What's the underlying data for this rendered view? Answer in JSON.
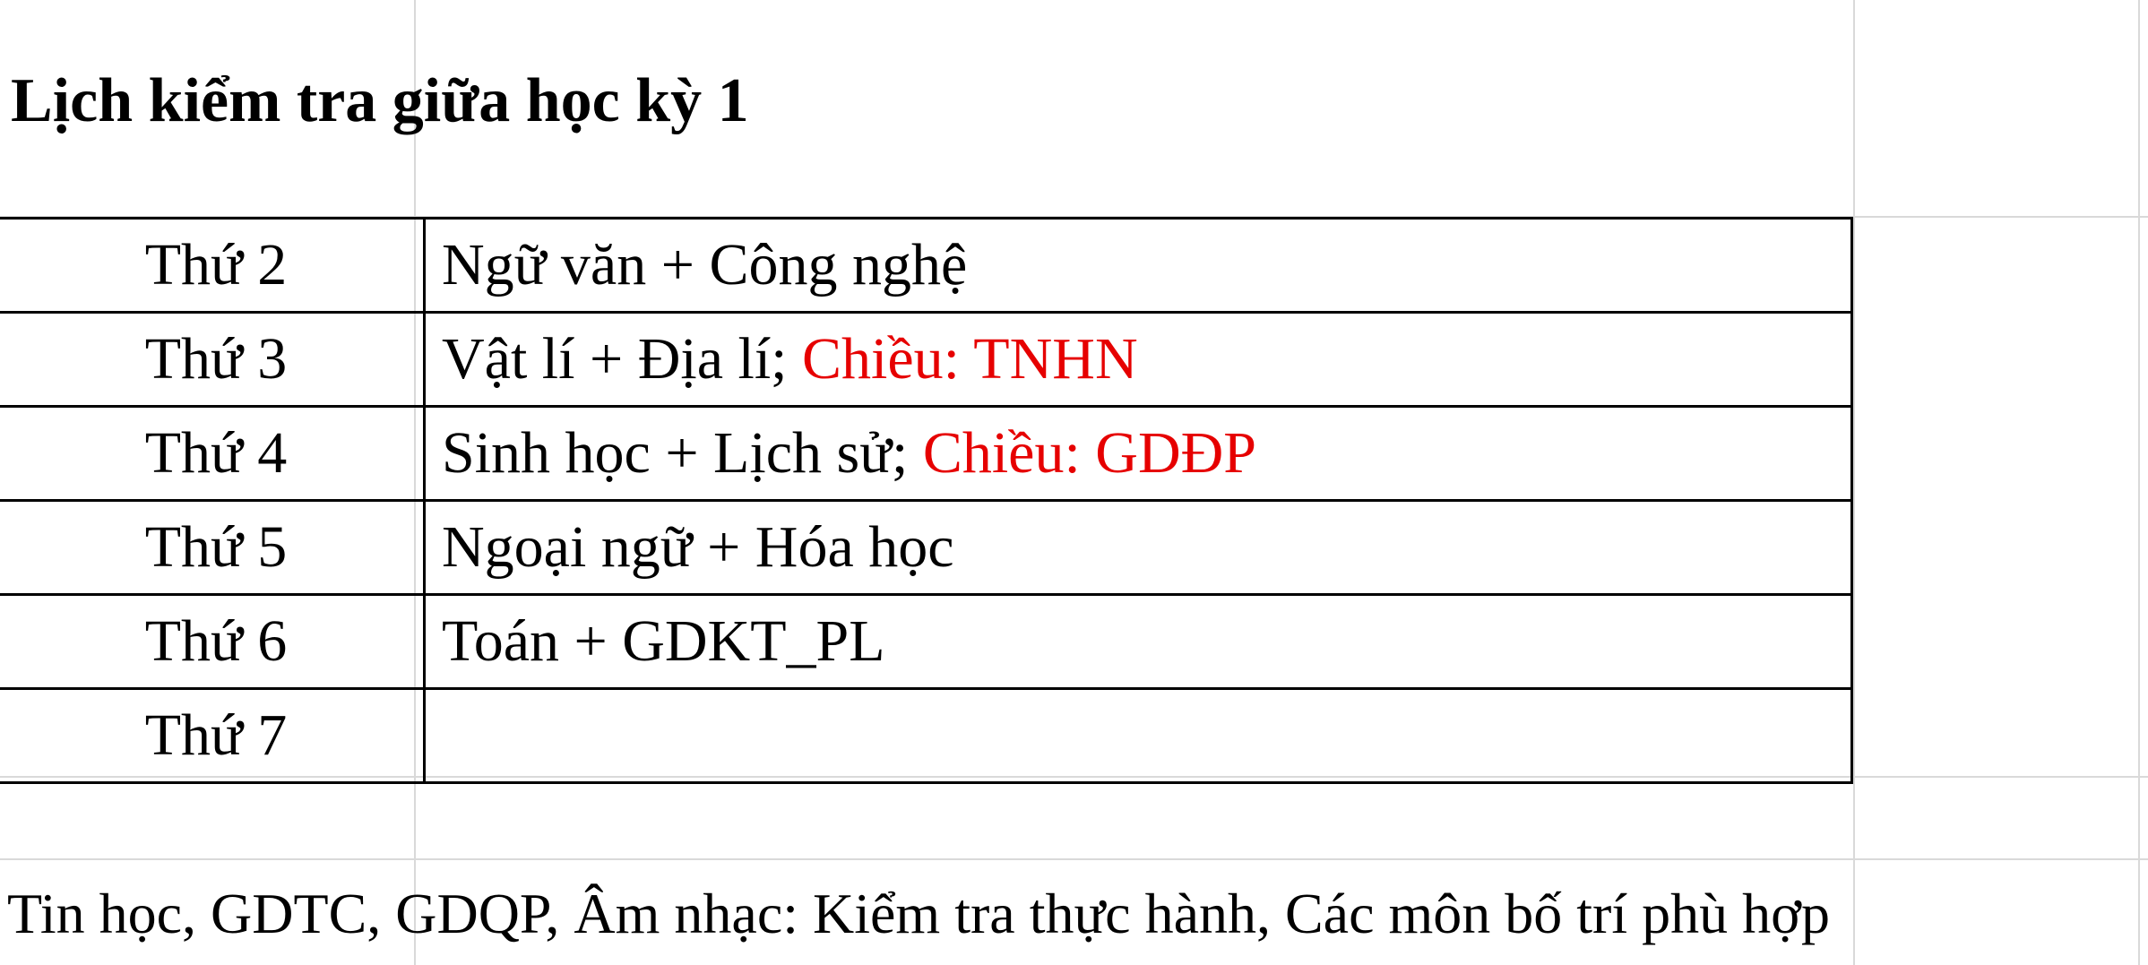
{
  "title": "Lịch kiểm tra giữa học kỳ 1",
  "schedule": [
    {
      "day": "Thứ 2",
      "subjects": "Ngữ văn + Công nghệ",
      "afternoon": ""
    },
    {
      "day": "Thứ 3",
      "subjects": "Vật lí + Địa lí; ",
      "afternoon": "Chiều: TNHN"
    },
    {
      "day": "Thứ 4",
      "subjects": "Sinh học + Lịch sử; ",
      "afternoon": "Chiều: GDĐP"
    },
    {
      "day": "Thứ 5",
      "subjects": "Ngoại ngữ + Hóa học",
      "afternoon": ""
    },
    {
      "day": "Thứ 6",
      "subjects": "Toán + GDKT_PL",
      "afternoon": ""
    },
    {
      "day": "Thứ 7",
      "subjects": "",
      "afternoon": ""
    }
  ],
  "note": "Tin học, GDTC, GDQP, Âm nhạc: Kiểm tra thực hành, Các môn bố trí phù hợp",
  "colors": {
    "afternoon_text": "#e60000",
    "gridline": "#d9d9d9",
    "border": "#000000"
  }
}
